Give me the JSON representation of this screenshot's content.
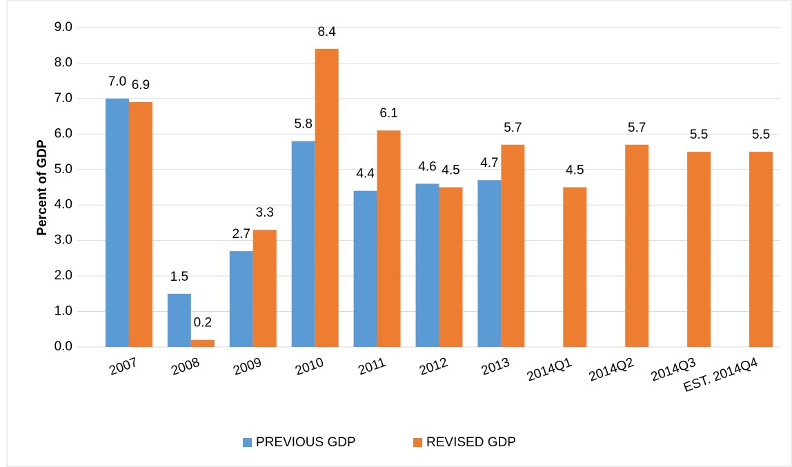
{
  "chart_data": {
    "type": "bar",
    "y_label": "Percent of GDP",
    "categories": [
      "2007",
      "2008",
      "2009",
      "2010",
      "2011",
      "2012",
      "2013",
      "2014Q1",
      "2014Q2",
      "2014Q3",
      "EST. 2014Q4"
    ],
    "series": [
      {
        "name": "PREVIOUS GDP",
        "color": "#5b9bd5",
        "values": [
          7.0,
          1.5,
          2.7,
          5.8,
          4.4,
          4.6,
          4.7,
          null,
          null,
          null,
          null
        ],
        "value_labels": [
          "7.0",
          "1.5",
          "2.7",
          "5.8",
          "4.4",
          "4.6",
          "4.7",
          null,
          null,
          null,
          null
        ]
      },
      {
        "name": "REVISED GDP",
        "color": "#ed7d31",
        "values": [
          6.9,
          0.2,
          3.3,
          8.4,
          6.1,
          4.5,
          5.7,
          4.5,
          5.7,
          5.5,
          5.5
        ],
        "value_labels": [
          "6.9",
          "0.2",
          "3.3",
          "8.4",
          "6.1",
          "4.5",
          "5.7",
          "4.5",
          "5.7",
          "5.5",
          "5.5"
        ]
      }
    ],
    "ylim": [
      0,
      9
    ],
    "yticks": [
      {
        "value": 0,
        "label": "0.0"
      },
      {
        "value": 1,
        "label": "1.0"
      },
      {
        "value": 2,
        "label": "2.0"
      },
      {
        "value": 3,
        "label": "3.0"
      },
      {
        "value": 4,
        "label": "4.0"
      },
      {
        "value": 5,
        "label": "5.0"
      },
      {
        "value": 6,
        "label": "6.0"
      },
      {
        "value": 7,
        "label": "7.0"
      },
      {
        "value": 8,
        "label": "8.0"
      },
      {
        "value": 9,
        "label": "9.0"
      }
    ],
    "grid": true,
    "legend": "bottom"
  }
}
